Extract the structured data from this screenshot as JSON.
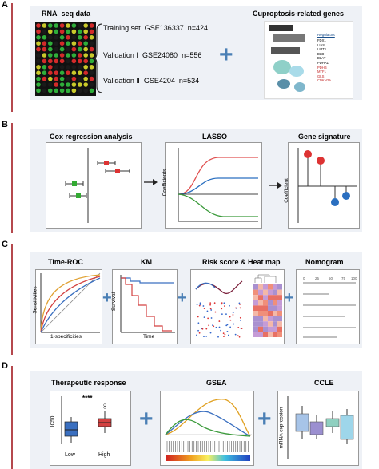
{
  "panels": {
    "a": {
      "label": "A",
      "title": "RNA–seq data",
      "datasets": [
        {
          "name": "Training set",
          "id": "GSE136337",
          "n": "n=424"
        },
        {
          "name": "Validation Ⅰ",
          "id": "GSE24080",
          "n": "n=556"
        },
        {
          "name": "Validation Ⅱ",
          "id": "GSE4204",
          "n": "n=534"
        }
      ],
      "genes_title": "Cuproptosis-related genes",
      "gene_list": [
        "FDX1",
        "LIAS",
        "LIPT1",
        "DLD",
        "DLAT",
        "PDHA1",
        "PDHB",
        "MTF1",
        "GLS",
        "CDKN2A"
      ],
      "gene_header": "Regulators"
    },
    "b": {
      "label": "B",
      "cox_title": "Cox regression analysis",
      "lasso_title": "LASSO",
      "lasso_ylabel": "Coefficients",
      "sig_title": "Gene signature",
      "sig_ylabel": "Coefficient"
    },
    "c": {
      "label": "C",
      "roc_title": "Time-ROC",
      "roc_ylabel": "Sensitivities",
      "roc_xlabel": "1-specificities",
      "km_title": "KM",
      "km_ylabel": "Survival",
      "km_xlabel": "Time",
      "risk_title": "Risk score & Heat map",
      "nomo_title": "Nomogram",
      "nomo_ticks": [
        "0",
        "25",
        "50",
        "75",
        "100"
      ]
    },
    "d": {
      "label": "D",
      "tr_title": "Therapeutic response",
      "tr_ylabel": "IC50",
      "tr_sig": "****",
      "tr_low": "Low",
      "tr_high": "High",
      "gsea_title": "GSEA",
      "ccle_title": "CCLE",
      "ccle_ylabel": "mRNA expression"
    }
  },
  "colors": {
    "accent": "#b5484d",
    "plus": "#4a7fb5",
    "panel": "#eef1f6"
  }
}
